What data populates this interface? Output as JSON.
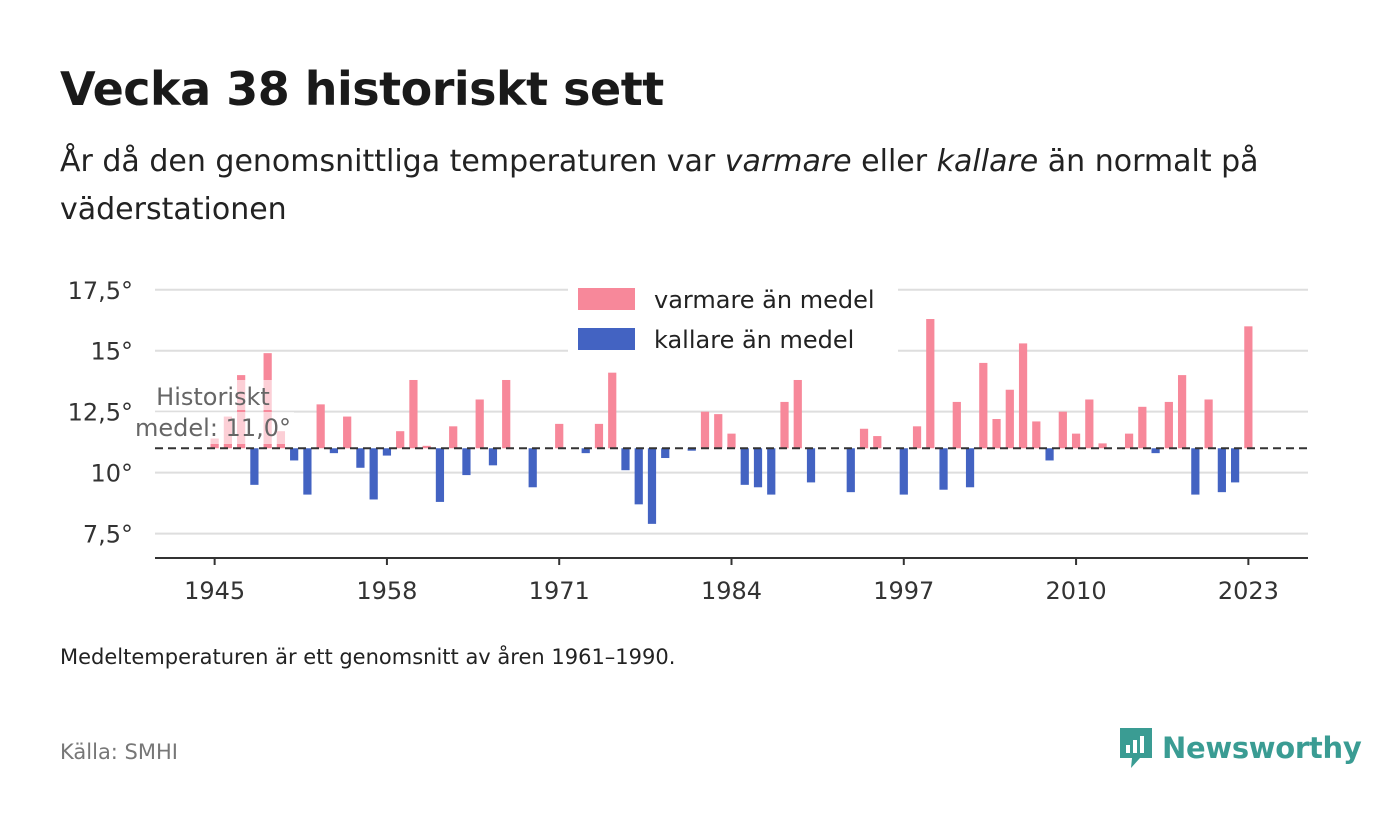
{
  "header": {
    "title": "Vecka 38 historiskt sett",
    "subtitle_pre": "År då den genomsnittliga temperaturen var ",
    "subtitle_em1": "varmare",
    "subtitle_mid": " eller ",
    "subtitle_em2": "kallare",
    "subtitle_post": " än normalt på väderstationen"
  },
  "footer": {
    "note": "Medeltemperaturen är ett genomsnitt av åren 1961–1990.",
    "source": "Källa: SMHI",
    "brand": "Newsworthy"
  },
  "colors": {
    "warm": "#f7889a",
    "cold": "#4363c2",
    "brand": "#3a9c93"
  },
  "chart_data": {
    "type": "bar",
    "baseline": 11.0,
    "baseline_label_line1": "Historiskt",
    "baseline_label_line2": "medel: 11,0°",
    "ylim": [
      6.5,
      17.9
    ],
    "xlim": [
      1940.5,
      2027.5
    ],
    "yticks": [
      7.5,
      10,
      12.5,
      15,
      17.5
    ],
    "ytick_labels": [
      "7,5°",
      "10°",
      "12,5°",
      "15°",
      "17,5°"
    ],
    "xticks": [
      1945,
      1958,
      1971,
      1984,
      1997,
      2010,
      2023
    ],
    "xtick_labels": [
      "1945",
      "1958",
      "1971",
      "1984",
      "1997",
      "2010",
      "2023"
    ],
    "legend": {
      "position": "top-center",
      "warm": "varmare än medel",
      "cold": "kallare än medel"
    },
    "grid": true,
    "series": [
      {
        "year": 1945,
        "value": 11.4
      },
      {
        "year": 1946,
        "value": 12.3
      },
      {
        "year": 1947,
        "value": 14.0
      },
      {
        "year": 1948,
        "value": 9.5
      },
      {
        "year": 1949,
        "value": 14.9
      },
      {
        "year": 1950,
        "value": 11.7
      },
      {
        "year": 1951,
        "value": 10.5
      },
      {
        "year": 1952,
        "value": 9.1
      },
      {
        "year": 1953,
        "value": 12.8
      },
      {
        "year": 1954,
        "value": 10.8
      },
      {
        "year": 1955,
        "value": 12.3
      },
      {
        "year": 1956,
        "value": 10.2
      },
      {
        "year": 1957,
        "value": 8.9
      },
      {
        "year": 1958,
        "value": 10.7
      },
      {
        "year": 1959,
        "value": 11.7
      },
      {
        "year": 1960,
        "value": 13.8
      },
      {
        "year": 1961,
        "value": 11.1
      },
      {
        "year": 1962,
        "value": 8.8
      },
      {
        "year": 1963,
        "value": 11.9
      },
      {
        "year": 1964,
        "value": 9.9
      },
      {
        "year": 1965,
        "value": 13.0
      },
      {
        "year": 1966,
        "value": 10.3
      },
      {
        "year": 1967,
        "value": 13.8
      },
      {
        "year": 1969,
        "value": 9.4
      },
      {
        "year": 1971,
        "value": 12.0
      },
      {
        "year": 1973,
        "value": 10.8
      },
      {
        "year": 1974,
        "value": 12.0
      },
      {
        "year": 1975,
        "value": 14.1
      },
      {
        "year": 1976,
        "value": 10.1
      },
      {
        "year": 1977,
        "value": 8.7
      },
      {
        "year": 1978,
        "value": 7.9
      },
      {
        "year": 1979,
        "value": 10.6
      },
      {
        "year": 1981,
        "value": 10.9
      },
      {
        "year": 1982,
        "value": 12.5
      },
      {
        "year": 1983,
        "value": 12.4
      },
      {
        "year": 1984,
        "value": 11.6
      },
      {
        "year": 1985,
        "value": 9.5
      },
      {
        "year": 1986,
        "value": 9.4
      },
      {
        "year": 1987,
        "value": 9.1
      },
      {
        "year": 1988,
        "value": 12.9
      },
      {
        "year": 1989,
        "value": 13.8
      },
      {
        "year": 1990,
        "value": 9.6
      },
      {
        "year": 1993,
        "value": 9.2
      },
      {
        "year": 1994,
        "value": 11.8
      },
      {
        "year": 1995,
        "value": 11.5
      },
      {
        "year": 1997,
        "value": 9.1
      },
      {
        "year": 1998,
        "value": 11.9
      },
      {
        "year": 1999,
        "value": 16.3
      },
      {
        "year": 2000,
        "value": 9.3
      },
      {
        "year": 2001,
        "value": 12.9
      },
      {
        "year": 2002,
        "value": 9.4
      },
      {
        "year": 2003,
        "value": 14.5
      },
      {
        "year": 2004,
        "value": 12.2
      },
      {
        "year": 2005,
        "value": 13.4
      },
      {
        "year": 2006,
        "value": 15.3
      },
      {
        "year": 2007,
        "value": 12.1
      },
      {
        "year": 2008,
        "value": 10.5
      },
      {
        "year": 2009,
        "value": 12.5
      },
      {
        "year": 2010,
        "value": 11.6
      },
      {
        "year": 2011,
        "value": 13.0
      },
      {
        "year": 2012,
        "value": 11.2
      },
      {
        "year": 2014,
        "value": 11.6
      },
      {
        "year": 2015,
        "value": 12.7
      },
      {
        "year": 2016,
        "value": 10.8
      },
      {
        "year": 2017,
        "value": 12.9
      },
      {
        "year": 2018,
        "value": 14.0
      },
      {
        "year": 2019,
        "value": 9.1
      },
      {
        "year": 2020,
        "value": 13.0
      },
      {
        "year": 2021,
        "value": 9.2
      },
      {
        "year": 2022,
        "value": 9.6
      },
      {
        "year": 2023,
        "value": 16.0
      }
    ]
  }
}
